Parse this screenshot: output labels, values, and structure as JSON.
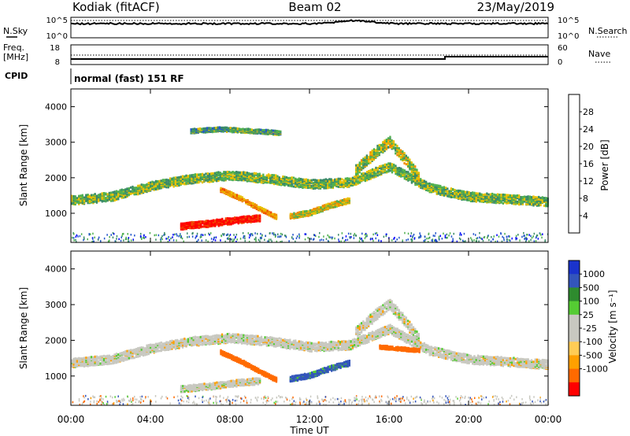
{
  "header": {
    "site": "Kodiak (fitACF)",
    "beam": "Beam 02",
    "date": "23/May/2019"
  },
  "noise_panel": {
    "left_label": "N.Sky",
    "right_label": "N.Search",
    "left_ticks": [
      "10^5",
      "10^0"
    ],
    "right_ticks": [
      "10^5",
      "10^0"
    ]
  },
  "freq_panel": {
    "left_label_1": "Freq.",
    "left_label_2": "[MHz]",
    "right_label": "Nave",
    "left_ticks": [
      "18",
      "8"
    ],
    "right_ticks": [
      "60",
      "0"
    ]
  },
  "cpid": {
    "label": "CPID",
    "text": "normal (fast) 151 RF"
  },
  "colors": {
    "power_scale": [
      "#0000ff",
      "#2255cc",
      "#3a8a68",
      "#4fb04f",
      "#e8c000",
      "#f08c00",
      "#f04a00",
      "#ff0000"
    ],
    "velocity_scale": [
      "#ff0000",
      "#ff6a00",
      "#ffa000",
      "#ffcc55",
      "#c8c8c0",
      "#c8c8c0",
      "#55cc33",
      "#2e8b2e",
      "#3355bb",
      "#1a33cc"
    ],
    "ground_scatter": "#c8c8c0"
  },
  "chart_data": [
    {
      "type": "heatmap",
      "title": "Power",
      "xlabel": "Time UT",
      "ylabel": "Slant Range [km]",
      "xlim": [
        0,
        24
      ],
      "ylim": [
        180,
        4500
      ],
      "x_ticks": [
        "00:00",
        "04:00",
        "08:00",
        "12:00",
        "16:00",
        "20:00",
        "00:00"
      ],
      "y_ticks": [
        "1000",
        "2000",
        "3000",
        "4000"
      ],
      "colorbar": {
        "label": "Power [dB]",
        "range": [
          0,
          32
        ],
        "ticks": [
          "4",
          "8",
          "12",
          "16",
          "20",
          "24",
          "28"
        ]
      },
      "bands": [
        {
          "t": [
            0,
            2,
            4,
            6,
            8,
            10,
            12,
            14,
            16,
            18,
            20,
            22,
            24
          ],
          "range_km": [
            1350,
            1450,
            1750,
            1950,
            2050,
            1950,
            1800,
            1850,
            2300,
            1700,
            1450,
            1380,
            1300
          ],
          "width_km": 250,
          "power_db": 14
        },
        {
          "t": [
            5.5,
            7,
            8.5,
            9.5
          ],
          "range_km": [
            620,
            700,
            800,
            850
          ],
          "width_km": 180,
          "power_db": 30
        },
        {
          "t": [
            7.5,
            8.5,
            9.5,
            10.3
          ],
          "range_km": [
            1650,
            1400,
            1100,
            880
          ],
          "width_km": 120,
          "power_db": 22
        },
        {
          "t": [
            11,
            12,
            13,
            14
          ],
          "range_km": [
            900,
            1000,
            1200,
            1350
          ],
          "width_km": 150,
          "power_db": 18
        },
        {
          "t": [
            14.3,
            15.3,
            16,
            16.8,
            17.5
          ],
          "range_km": [
            2200,
            2700,
            3000,
            2500,
            2000
          ],
          "width_km": 300,
          "power_db": 16
        },
        {
          "t": [
            6,
            7.5,
            9,
            10.5
          ],
          "range_km": [
            3300,
            3350,
            3300,
            3250
          ],
          "width_km": 120,
          "power_db": 12
        }
      ]
    },
    {
      "type": "heatmap",
      "title": "Velocity",
      "xlabel": "Time UT",
      "ylabel": "Slant Range [km]",
      "xlim": [
        0,
        24
      ],
      "ylim": [
        180,
        4500
      ],
      "x_ticks": [
        "00:00",
        "04:00",
        "08:00",
        "12:00",
        "16:00",
        "20:00",
        "00:00"
      ],
      "y_ticks": [
        "1000",
        "2000",
        "3000",
        "4000"
      ],
      "colorbar": {
        "label": "Velocity [m s⁻¹]",
        "ticks": [
          "1000",
          "500",
          "100",
          "25",
          "-25",
          "-100",
          "-500",
          "-1000"
        ]
      },
      "bands": [
        {
          "t": [
            0,
            2,
            4,
            6,
            8,
            10,
            12,
            14,
            16,
            18,
            20,
            22,
            24
          ],
          "range_km": [
            1350,
            1450,
            1750,
            1950,
            2050,
            1950,
            1800,
            1850,
            2300,
            1700,
            1450,
            1380,
            1300
          ],
          "width_km": 250,
          "velocity": 0
        },
        {
          "t": [
            5.5,
            7,
            8.5,
            9.5
          ],
          "range_km": [
            620,
            700,
            800,
            850
          ],
          "width_km": 180,
          "velocity": 0
        },
        {
          "t": [
            7.5,
            8.5,
            9.5,
            10.3
          ],
          "range_km": [
            1650,
            1400,
            1100,
            880
          ],
          "width_km": 120,
          "velocity": -200
        },
        {
          "t": [
            11,
            12,
            13,
            14
          ],
          "range_km": [
            900,
            1000,
            1200,
            1350
          ],
          "width_km": 150,
          "velocity": 120
        },
        {
          "t": [
            14.3,
            15.3,
            16,
            16.8,
            17.5
          ],
          "range_km": [
            2200,
            2700,
            3000,
            2500,
            2000
          ],
          "width_km": 300,
          "velocity": 0
        },
        {
          "t": [
            15.5,
            16.5,
            17.5
          ],
          "range_km": [
            1800,
            1750,
            1700
          ],
          "width_km": 100,
          "velocity": -300
        }
      ]
    }
  ]
}
